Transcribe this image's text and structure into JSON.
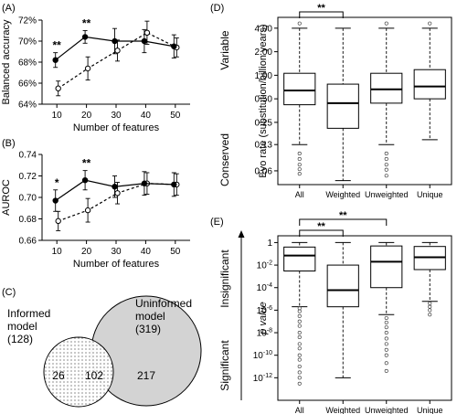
{
  "chart_data": [
    {
      "panel": "(A)",
      "type": "line",
      "x": [
        10,
        20,
        30,
        40,
        50
      ],
      "xlabel": "Number of features",
      "ylabel": "Balanced accuracy",
      "ylim": [
        64,
        72
      ],
      "yticks": [
        64,
        66,
        68,
        70,
        72
      ],
      "ytick_labels": [
        "64%",
        "66%",
        "68%",
        "70%",
        "72%"
      ],
      "series": [
        {
          "style": "solid",
          "marker": "filled",
          "values": [
            68.2,
            70.4,
            70.0,
            70.0,
            69.5
          ],
          "err": [
            0.7,
            0.6,
            1.2,
            1.1,
            1.1
          ]
        },
        {
          "style": "dashed",
          "marker": "open",
          "values": [
            65.5,
            67.4,
            69.1,
            70.8,
            69.4
          ],
          "err": [
            0.7,
            1.1,
            1.0,
            1.1,
            0.9
          ]
        }
      ],
      "significance": [
        {
          "x": 10,
          "label": "**"
        },
        {
          "x": 20,
          "label": "**"
        }
      ]
    },
    {
      "panel": "(B)",
      "type": "line",
      "x": [
        10,
        20,
        30,
        40,
        50
      ],
      "xlabel": "Number of features",
      "ylabel": "AUROC",
      "ylim": [
        0.66,
        0.74
      ],
      "yticks": [
        0.66,
        0.68,
        0.7,
        0.72,
        0.74
      ],
      "ytick_labels": [
        "0.66",
        "0.68",
        "0.70",
        "0.72",
        "0.74"
      ],
      "series": [
        {
          "style": "solid",
          "marker": "filled",
          "values": [
            0.697,
            0.716,
            0.71,
            0.713,
            0.712
          ],
          "err": [
            0.01,
            0.009,
            0.01,
            0.011,
            0.011
          ]
        },
        {
          "style": "dashed",
          "marker": "open",
          "values": [
            0.678,
            0.688,
            0.704,
            0.713,
            0.712
          ],
          "err": [
            0.009,
            0.011,
            0.01,
            0.01,
            0.01
          ]
        }
      ],
      "significance": [
        {
          "x": 10,
          "label": "*"
        },
        {
          "x": 20,
          "label": "**"
        }
      ]
    },
    {
      "panel": "(C)",
      "type": "venn",
      "sets": [
        {
          "label": "Informed model",
          "count_label": "(128)"
        },
        {
          "label": "Uninformed model",
          "count_label": "(319)"
        }
      ],
      "regions": {
        "only_first": 26,
        "both": 102,
        "only_second": 217
      }
    },
    {
      "panel": "(D)",
      "type": "boxplot",
      "categories": [
        "All",
        "Weighted",
        "Unweighted",
        "Unique"
      ],
      "scale": "log",
      "ylabel": "Evo rate (substitution/billion years)",
      "ylim": [
        0.04,
        5.5
      ],
      "yticks": [
        0.06,
        0.13,
        0.25,
        0.5,
        1.0,
        2.0,
        4.0
      ],
      "ytick_labels": [
        "0.06",
        "0.13",
        "0.25",
        "0.50",
        "1.00",
        "2.00",
        "4.00"
      ],
      "side_labels": {
        "top": "Variable",
        "bottom": "Conserved"
      },
      "boxes": [
        {
          "whisker_low": 0.13,
          "q1": 0.42,
          "median": 0.64,
          "q3": 1.06,
          "whisker_high": 4.0,
          "outliers": [
            4.6,
            0.1,
            0.085,
            0.072,
            0.063,
            0.055
          ]
        },
        {
          "whisker_low": 0.045,
          "q1": 0.21,
          "median": 0.44,
          "q3": 0.77,
          "whisker_high": 4.0,
          "outliers": []
        },
        {
          "whisker_low": 0.13,
          "q1": 0.44,
          "median": 0.66,
          "q3": 1.06,
          "whisker_high": 4.0,
          "outliers": [
            4.6,
            0.1,
            0.085,
            0.072,
            0.062,
            0.052
          ]
        },
        {
          "whisker_low": 0.15,
          "q1": 0.5,
          "median": 0.72,
          "q3": 1.18,
          "whisker_high": 4.0,
          "outliers": [
            4.6
          ]
        }
      ],
      "brackets": [
        {
          "from": 0,
          "to": 1,
          "label": "**"
        }
      ]
    },
    {
      "panel": "(E)",
      "type": "boxplot",
      "categories": [
        "All",
        "Weighted",
        "Unweighted",
        "Unique"
      ],
      "scale": "log",
      "ylabel": "p value",
      "ylim": [
        1e-14,
        4
      ],
      "yticks": [
        1,
        0.01,
        0.0001,
        1e-06,
        1e-08,
        1e-10,
        1e-12
      ],
      "ytick_labels": [
        {
          "base": "1",
          "exp": ""
        },
        {
          "base": "10",
          "exp": "-2"
        },
        {
          "base": "10",
          "exp": "-4"
        },
        {
          "base": "10",
          "exp": "-6"
        },
        {
          "base": "10",
          "exp": "-8"
        },
        {
          "base": "10",
          "exp": "-10"
        },
        {
          "base": "10",
          "exp": "-12"
        }
      ],
      "side_labels": {
        "top": "Insignificant",
        "bottom": "Significant"
      },
      "boxes": [
        {
          "whisker_low": 2e-06,
          "q1": 0.003,
          "median": 0.07,
          "q3": 0.4,
          "whisker_high": 1.0,
          "outliers": [
            1.5e-06,
            8e-07,
            3e-07,
            1e-07,
            4e-08,
            1e-08,
            4e-09,
            1e-09,
            4e-10,
            1e-10,
            4e-11,
            1e-11,
            3e-12,
            1e-12,
            3e-13
          ]
        },
        {
          "whisker_low": 1e-12,
          "q1": 2e-06,
          "median": 6e-05,
          "q3": 0.01,
          "whisker_high": 1.0,
          "outliers": []
        },
        {
          "whisker_low": 4e-07,
          "q1": 0.0001,
          "median": 0.02,
          "q3": 0.5,
          "whisker_high": 1.0,
          "outliers": [
            2e-07,
            8e-08,
            3e-08,
            1e-08,
            3e-09,
            1e-09,
            3e-10,
            1e-10,
            2e-11,
            4e-12
          ]
        },
        {
          "whisker_low": 6e-06,
          "q1": 0.004,
          "median": 0.05,
          "q3": 0.45,
          "whisker_high": 1.0,
          "outliers": [
            4e-06,
            2e-06,
            1e-06,
            4e-07
          ]
        }
      ],
      "brackets": [
        {
          "from": 0,
          "to": 1,
          "label": "**"
        },
        {
          "from": 0,
          "to": 2,
          "label": "**"
        }
      ]
    }
  ]
}
